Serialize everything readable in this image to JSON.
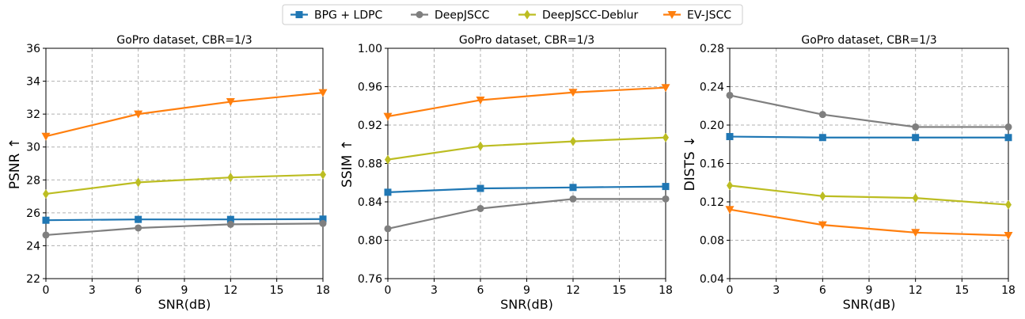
{
  "legend": {
    "items": [
      {
        "label": "BPG + LDPC",
        "color": "#1f77b4",
        "marker": "square"
      },
      {
        "label": "DeepJSCC",
        "color": "#7f7f7f",
        "marker": "circle"
      },
      {
        "label": "DeepJSCC-Deblur",
        "color": "#bcbd22",
        "marker": "diamond"
      },
      {
        "label": "EV-JSCC",
        "color": "#ff7f0e",
        "marker": "triangle-down"
      }
    ]
  },
  "chart_data": [
    {
      "type": "line",
      "title": "GoPro dataset, CBR=1/3",
      "xlabel": "SNR(dB)",
      "ylabel": "PSNR ↑",
      "x": [
        0,
        6,
        12,
        18
      ],
      "xlim": [
        0,
        18
      ],
      "xticks": [
        0,
        3,
        6,
        9,
        12,
        15,
        18
      ],
      "ylim": [
        22,
        36
      ],
      "yticks": [
        22,
        24,
        26,
        28,
        30,
        32,
        34,
        36
      ],
      "ytick_decimals": 0,
      "series": [
        {
          "name": "BPG + LDPC",
          "values": [
            25.55,
            25.6,
            25.6,
            25.62
          ]
        },
        {
          "name": "DeepJSCC",
          "values": [
            24.65,
            25.08,
            25.3,
            25.35
          ]
        },
        {
          "name": "DeepJSCC-Deblur",
          "values": [
            27.15,
            27.85,
            28.15,
            28.32
          ]
        },
        {
          "name": "EV-JSCC",
          "values": [
            30.65,
            32.0,
            32.75,
            33.3
          ]
        }
      ]
    },
    {
      "type": "line",
      "title": "GoPro dataset, CBR=1/3",
      "xlabel": "SNR(dB)",
      "ylabel": "SSIM ↑",
      "x": [
        0,
        6,
        12,
        18
      ],
      "xlim": [
        0,
        18
      ],
      "xticks": [
        0,
        3,
        6,
        9,
        12,
        15,
        18
      ],
      "ylim": [
        0.76,
        1.0
      ],
      "yticks": [
        0.76,
        0.8,
        0.84,
        0.88,
        0.92,
        0.96,
        1.0
      ],
      "ytick_decimals": 2,
      "series": [
        {
          "name": "BPG + LDPC",
          "values": [
            0.85,
            0.854,
            0.855,
            0.856
          ]
        },
        {
          "name": "DeepJSCC",
          "values": [
            0.812,
            0.833,
            0.843,
            0.843
          ]
        },
        {
          "name": "DeepJSCC-Deblur",
          "values": [
            0.884,
            0.898,
            0.903,
            0.907
          ]
        },
        {
          "name": "EV-JSCC",
          "values": [
            0.929,
            0.946,
            0.954,
            0.959
          ]
        }
      ]
    },
    {
      "type": "line",
      "title": "GoPro dataset, CBR=1/3",
      "xlabel": "SNR(dB)",
      "ylabel": "DISTS ↓",
      "x": [
        0,
        6,
        12,
        18
      ],
      "xlim": [
        0,
        18
      ],
      "xticks": [
        0,
        3,
        6,
        9,
        12,
        15,
        18
      ],
      "ylim": [
        0.04,
        0.28
      ],
      "yticks": [
        0.04,
        0.08,
        0.12,
        0.16,
        0.2,
        0.24,
        0.28
      ],
      "ytick_decimals": 2,
      "series": [
        {
          "name": "BPG + LDPC",
          "values": [
            0.188,
            0.187,
            0.187,
            0.187
          ]
        },
        {
          "name": "DeepJSCC",
          "values": [
            0.231,
            0.211,
            0.198,
            0.198
          ]
        },
        {
          "name": "DeepJSCC-Deblur",
          "values": [
            0.137,
            0.126,
            0.124,
            0.117
          ]
        },
        {
          "name": "EV-JSCC",
          "values": [
            0.112,
            0.096,
            0.088,
            0.085
          ]
        }
      ]
    }
  ]
}
